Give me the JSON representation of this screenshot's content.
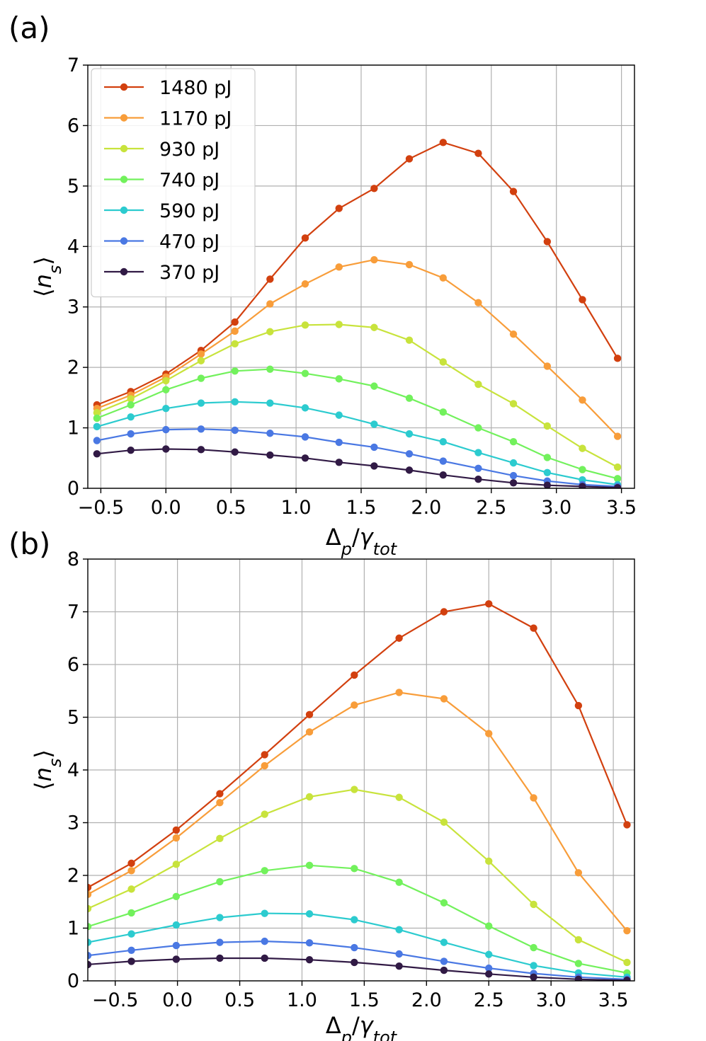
{
  "figure": {
    "panels": [
      "(a)",
      "(b)"
    ]
  },
  "chart_data": [
    {
      "type": "line",
      "panel": "(a)",
      "xlabel": "Δp/γtot",
      "ylabel": "⟨ns⟩",
      "xlim": [
        -0.6,
        3.6
      ],
      "ylim": [
        0,
        7
      ],
      "xticks": [
        -0.5,
        0.0,
        0.5,
        1.0,
        1.5,
        2.0,
        2.5,
        3.0,
        3.5
      ],
      "xtick_labels": [
        "−0.5",
        "0.0",
        "0.5",
        "1.0",
        "1.5",
        "2.0",
        "2.5",
        "3.0",
        "3.5"
      ],
      "yticks": [
        0,
        1,
        2,
        3,
        4,
        5,
        6,
        7
      ],
      "ytick_labels": [
        "0",
        "1",
        "2",
        "3",
        "4",
        "5",
        "6",
        "7"
      ],
      "grid": true,
      "legend": "top-left",
      "x": [
        -0.53,
        -0.27,
        0.0,
        0.27,
        0.53,
        0.8,
        1.07,
        1.33,
        1.6,
        1.87,
        2.13,
        2.4,
        2.67,
        2.93,
        3.2,
        3.47
      ],
      "series": [
        {
          "name": "1480 pJ",
          "color": "#d2400f",
          "values": [
            1.38,
            1.6,
            1.89,
            2.28,
            2.75,
            3.46,
            4.14,
            4.63,
            4.96,
            5.45,
            5.72,
            5.54,
            4.91,
            4.08,
            3.12,
            2.15
          ]
        },
        {
          "name": "1170 pJ",
          "color": "#f89d3a",
          "values": [
            1.32,
            1.54,
            1.84,
            2.22,
            2.6,
            3.05,
            3.38,
            3.66,
            3.78,
            3.7,
            3.48,
            3.07,
            2.55,
            2.02,
            1.46,
            0.86
          ]
        },
        {
          "name": "930 pJ",
          "color": "#c8e33c",
          "values": [
            1.25,
            1.48,
            1.78,
            2.11,
            2.39,
            2.59,
            2.7,
            2.71,
            2.66,
            2.45,
            2.09,
            1.72,
            1.4,
            1.03,
            0.66,
            0.35
          ]
        },
        {
          "name": "740 pJ",
          "color": "#72f15c",
          "values": [
            1.16,
            1.38,
            1.63,
            1.82,
            1.94,
            1.97,
            1.9,
            1.81,
            1.69,
            1.49,
            1.26,
            1.0,
            0.77,
            0.51,
            0.31,
            0.16
          ]
        },
        {
          "name": "590 pJ",
          "color": "#2ccbcf",
          "values": [
            1.02,
            1.18,
            1.32,
            1.41,
            1.43,
            1.41,
            1.33,
            1.21,
            1.06,
            0.9,
            0.77,
            0.59,
            0.42,
            0.26,
            0.14,
            0.06
          ]
        },
        {
          "name": "470 pJ",
          "color": "#4a78e3",
          "values": [
            0.79,
            0.9,
            0.97,
            0.98,
            0.96,
            0.91,
            0.85,
            0.76,
            0.68,
            0.57,
            0.45,
            0.33,
            0.21,
            0.12,
            0.06,
            0.03
          ]
        },
        {
          "name": "370 pJ",
          "color": "#311a45",
          "values": [
            0.57,
            0.63,
            0.65,
            0.64,
            0.6,
            0.55,
            0.5,
            0.43,
            0.37,
            0.3,
            0.22,
            0.15,
            0.09,
            0.05,
            0.03,
            0.01
          ]
        }
      ]
    },
    {
      "type": "line",
      "panel": "(b)",
      "xlabel": "Δp/γtot",
      "ylabel": "⟨ns⟩",
      "xlim": [
        -0.72,
        3.67
      ],
      "ylim": [
        0,
        8
      ],
      "xticks": [
        -0.5,
        0.0,
        0.5,
        1.0,
        1.5,
        2.0,
        2.5,
        3.0,
        3.5
      ],
      "xtick_labels": [
        "−0.5",
        "0.0",
        "0.5",
        "1.0",
        "1.5",
        "2.0",
        "2.5",
        "3.0",
        "3.5"
      ],
      "yticks": [
        0,
        1,
        2,
        3,
        4,
        5,
        6,
        7,
        8
      ],
      "ytick_labels": [
        "0",
        "1",
        "2",
        "3",
        "4",
        "5",
        "6",
        "7",
        "8"
      ],
      "grid": true,
      "legend": "none",
      "x": [
        -0.72,
        -0.37,
        -0.01,
        0.34,
        0.7,
        1.06,
        1.42,
        1.78,
        2.14,
        2.5,
        2.86,
        3.22,
        3.61
      ],
      "series": [
        {
          "name": "1480 pJ",
          "color": "#d2400f",
          "values": [
            1.77,
            2.23,
            2.86,
            3.55,
            4.29,
            5.05,
            5.8,
            6.5,
            7.0,
            7.15,
            6.69,
            5.22,
            2.96
          ]
        },
        {
          "name": "1170 pJ",
          "color": "#f89d3a",
          "values": [
            1.64,
            2.09,
            2.71,
            3.38,
            4.08,
            4.72,
            5.23,
            5.47,
            5.35,
            4.69,
            3.47,
            2.05,
            0.95
          ]
        },
        {
          "name": "930 pJ",
          "color": "#c8e33c",
          "values": [
            1.37,
            1.74,
            2.21,
            2.7,
            3.16,
            3.49,
            3.63,
            3.48,
            3.01,
            2.27,
            1.45,
            0.78,
            0.35
          ]
        },
        {
          "name": "740 pJ",
          "color": "#72f15c",
          "values": [
            1.03,
            1.29,
            1.6,
            1.88,
            2.09,
            2.19,
            2.13,
            1.87,
            1.48,
            1.04,
            0.63,
            0.33,
            0.15
          ]
        },
        {
          "name": "590 pJ",
          "color": "#2ccbcf",
          "values": [
            0.73,
            0.89,
            1.06,
            1.2,
            1.28,
            1.27,
            1.16,
            0.97,
            0.73,
            0.5,
            0.29,
            0.15,
            0.07
          ]
        },
        {
          "name": "470 pJ",
          "color": "#4a78e3",
          "values": [
            0.48,
            0.58,
            0.67,
            0.73,
            0.75,
            0.72,
            0.63,
            0.51,
            0.37,
            0.24,
            0.14,
            0.07,
            0.03
          ]
        },
        {
          "name": "370 pJ",
          "color": "#311a45",
          "values": [
            0.31,
            0.37,
            0.41,
            0.43,
            0.43,
            0.4,
            0.35,
            0.28,
            0.2,
            0.13,
            0.07,
            0.03,
            0.01
          ]
        }
      ]
    }
  ]
}
